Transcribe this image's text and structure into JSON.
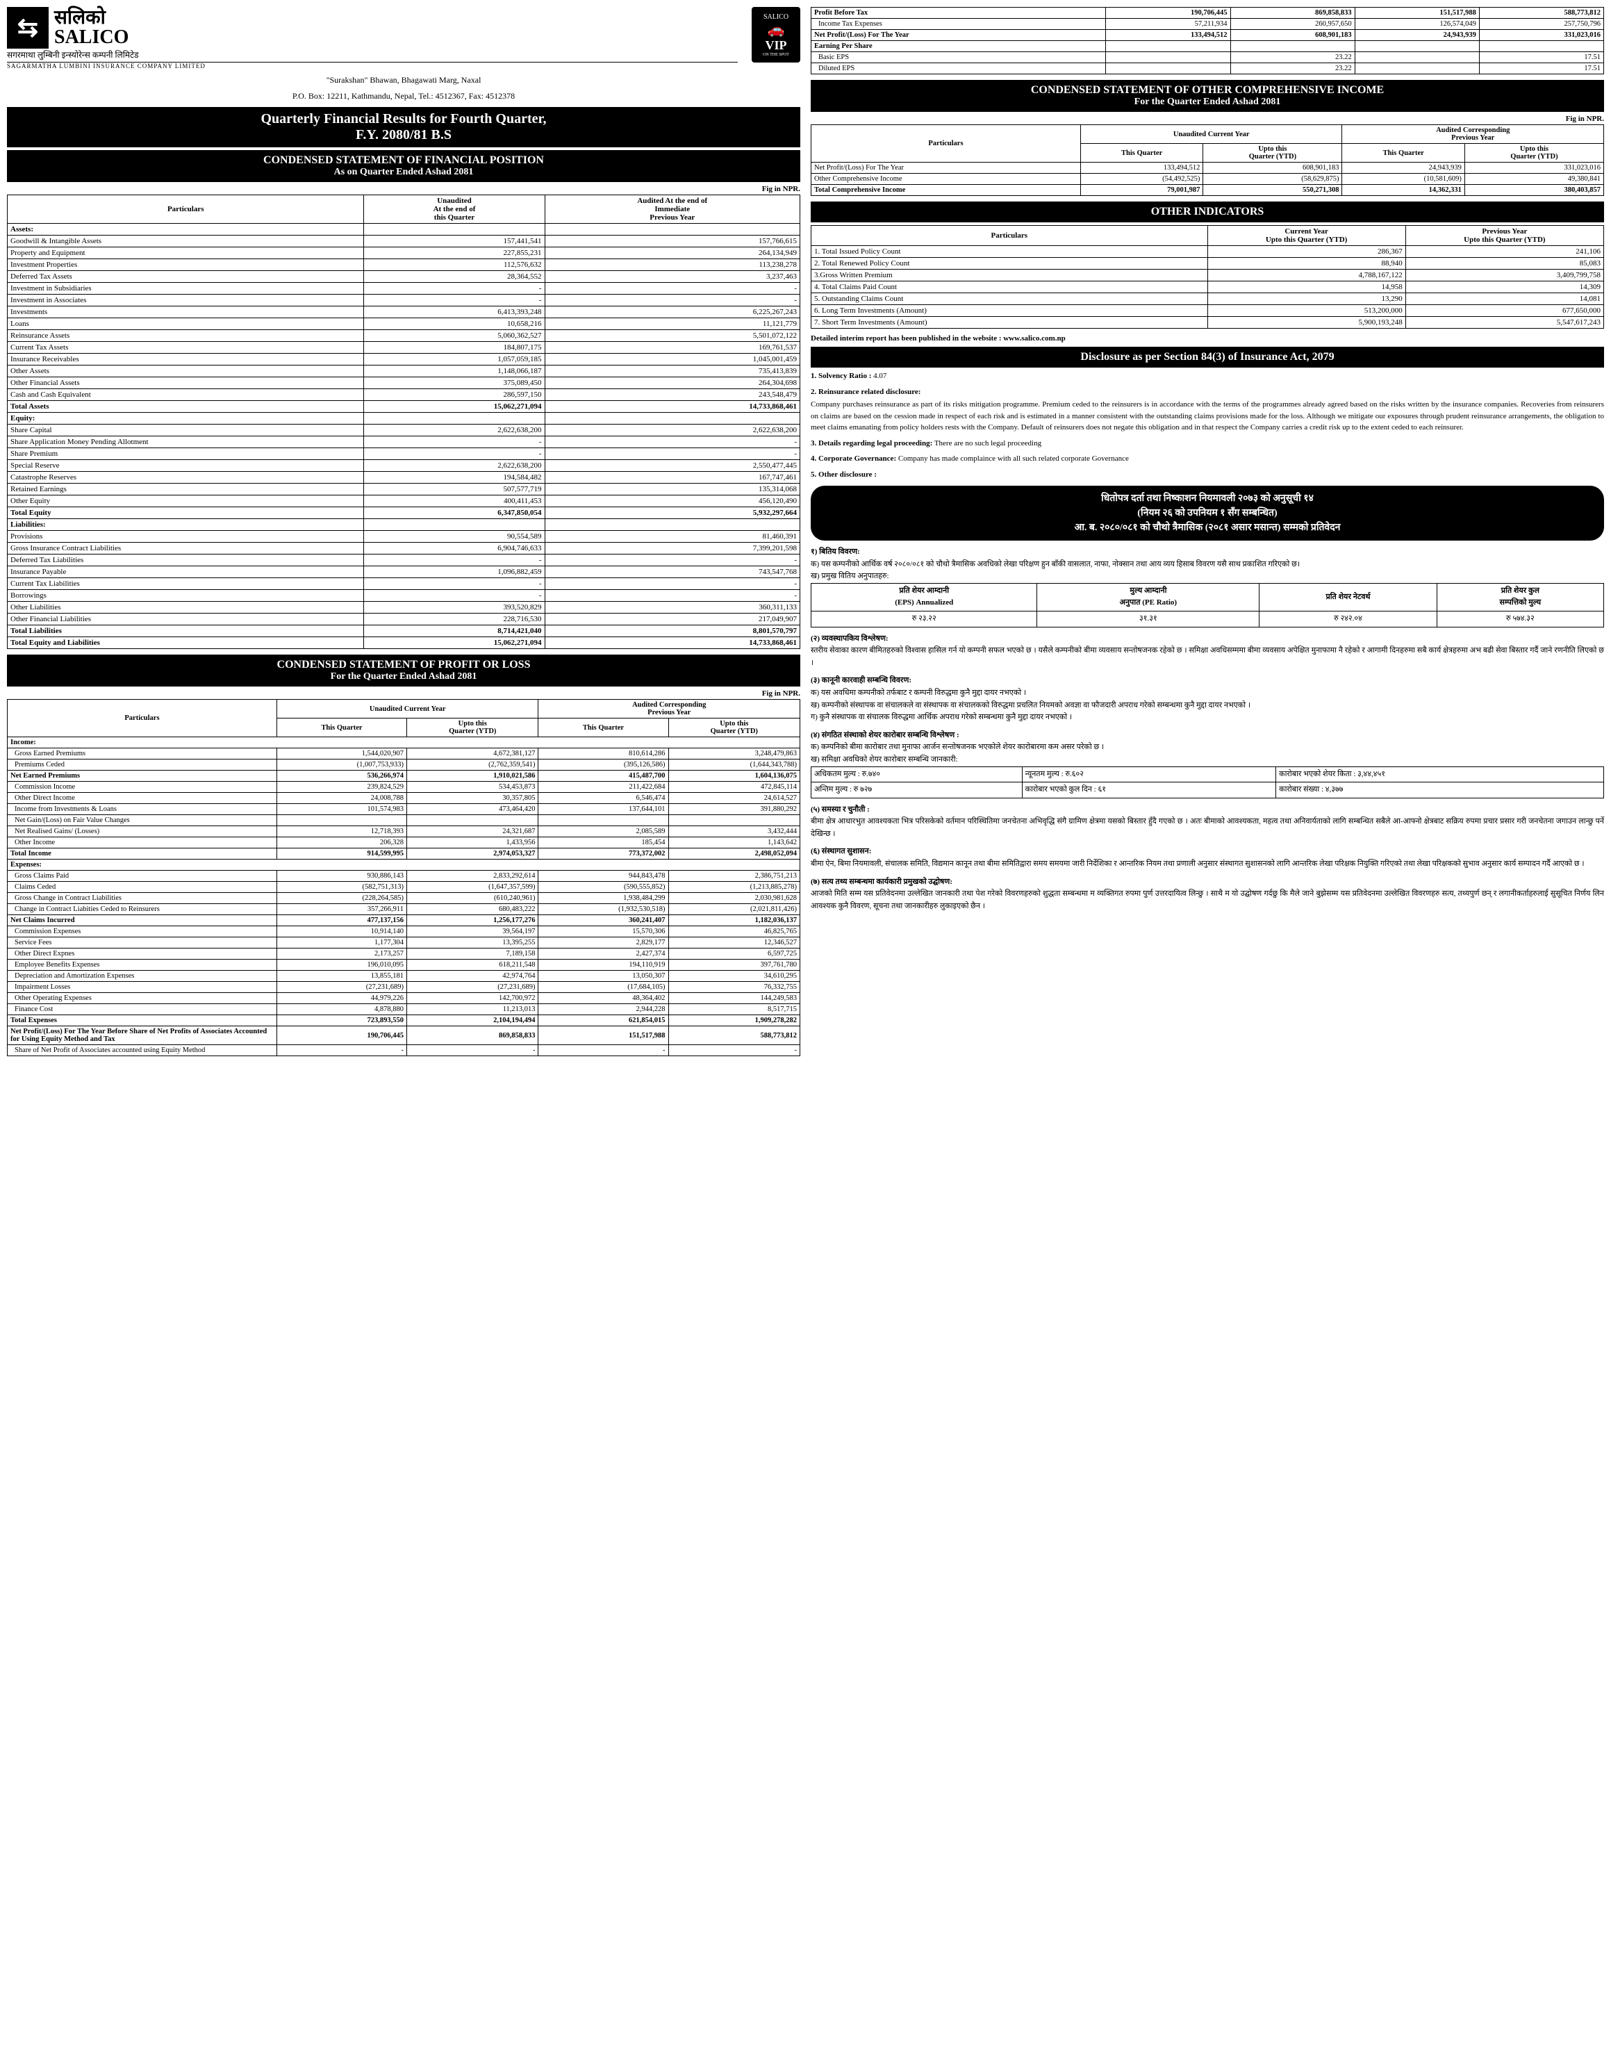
{
  "company": {
    "name_np": "सलिको",
    "name_en": "SALICO",
    "sub_np": "सगरमाथा लुम्बिनी इन्स्योरेन्स कम्पनी लिमिटेड",
    "sub_en": "SAGARMATHA LUMBINI INSURANCE COMPANY LIMITED",
    "address1": "\"Surakshan\" Bhawan, Bhagawati Marg, Naxal",
    "address2": "P.O. Box: 12211, Kathmandu, Nepal, Tel.: 4512367, Fax: 4512378",
    "vip_top": "SALICO",
    "vip": "VIP",
    "vip_sub": "ON THE SPOT"
  },
  "main_title": {
    "line1": "Quarterly Financial Results for Fourth Quarter,",
    "line2": "F.Y. 2080/81 B.S"
  },
  "fp": {
    "title": "CONDENSED STATEMENT OF FINANCIAL POSITION",
    "sub": "As on Quarter Ended Ashad 2081",
    "fig": "Fig in NPR.",
    "h_part": "Particulars",
    "h_cur": "Unaudited\nAt the end of\nthis Quarter",
    "h_prev": "Audited At the end of\nImmediate\nPrevious Year",
    "sections": [
      {
        "hdr": "Assets:",
        "rows": [
          [
            "Goodwill & Intangible Assets",
            "157,441,541",
            "157,766,615"
          ],
          [
            "Property and Equipment",
            "227,855,231",
            "264,134,949"
          ],
          [
            "Investment Properties",
            "112,576,632",
            "113,238,278"
          ],
          [
            "Deferred Tax Assets",
            "28,364,552",
            "3,237,463"
          ],
          [
            "Investment in Subsidiaries",
            "-",
            "-"
          ],
          [
            "Investment in Associates",
            "-",
            "-"
          ],
          [
            "Investments",
            "6,413,393,248",
            "6,225,267,243"
          ],
          [
            "Loans",
            "10,658,216",
            "11,121,779"
          ],
          [
            "Reinsurance Assets",
            "5,060,362,527",
            "5,501,072,122"
          ],
          [
            "Current Tax Assets",
            "184,807,175",
            "169,761,537"
          ],
          [
            "Insurance Receivables",
            "1,057,059,185",
            "1,045,001,459"
          ],
          [
            "Other Assets",
            "1,148,066,187",
            "735,413,839"
          ],
          [
            "Other Financial Assets",
            "375,089,450",
            "264,304,698"
          ],
          [
            "Cash and Cash Equivalent",
            "286,597,150",
            "243,548,479"
          ]
        ],
        "total": [
          "Total Assets",
          "15,062,271,094",
          "14,733,868,461"
        ]
      },
      {
        "hdr": "Equity:",
        "rows": [
          [
            "Share Capital",
            "2,622,638,200",
            "2,622,638,200"
          ],
          [
            "Share Application Money Pending Allotment",
            "-",
            "-"
          ],
          [
            "Share Premium",
            "-",
            "-"
          ],
          [
            "Special Reserve",
            "2,622,638,200",
            "2,550,477,445"
          ],
          [
            "Catastrophe Reserves",
            "194,584,482",
            "167,747,461"
          ],
          [
            "Retained Earnings",
            "507,577,719",
            "135,314,068"
          ],
          [
            "Other Equity",
            "400,411,453",
            "456,120,490"
          ]
        ],
        "total": [
          "Total Equity",
          "6,347,850,054",
          "5,932,297,664"
        ]
      },
      {
        "hdr": "Liabilities:",
        "rows": [
          [
            "Provisions",
            "90,554,589",
            "81,460,391"
          ],
          [
            "Gross Insurance Contract Liabilities",
            "6,904,746,633",
            "7,399,201,598"
          ],
          [
            "Deferred Tax Liabilities",
            "-",
            "-"
          ],
          [
            "Insurance Payable",
            "1,096,882,459",
            "743,547,768"
          ],
          [
            "Current Tax Liabilities",
            "-",
            "-"
          ],
          [
            "Borrowings",
            "-",
            "-"
          ],
          [
            "Other Liabilities",
            "393,520,829",
            "360,311,133"
          ],
          [
            "Other Financial Liabilities",
            "228,716,530",
            "217,049,907"
          ]
        ],
        "total": [
          "Total Liabilities",
          "8,714,421,040",
          "8,801,570,797"
        ]
      }
    ],
    "grand": [
      "Total Equity and Liabilities",
      "15,062,271,094",
      "14,733,868,461"
    ]
  },
  "pl": {
    "title": "CONDENSED STATEMENT OF PROFIT OR LOSS",
    "sub": "For the Quarter Ended Ashad 2081",
    "fig": "Fig in NPR.",
    "h_part": "Particulars",
    "h_cur": "Unaudited Current Year",
    "h_prev": "Audited Corresponding\nPrevious Year",
    "h_tq": "This Quarter",
    "h_ytd": "Upto this\nQuarter (YTD)",
    "rows": [
      {
        "t": "hdr",
        "c": [
          "Income:"
        ]
      },
      {
        "t": "r",
        "c": [
          "Gross Earned Premiums",
          "1,544,020,907",
          "4,672,381,127",
          "810,614,286",
          "3,248,479,863"
        ]
      },
      {
        "t": "r",
        "c": [
          "Premiums Ceded",
          "(1,007,753,933)",
          "(2,762,359,541)",
          "(395,126,586)",
          "(1,644,343,788)"
        ]
      },
      {
        "t": "b",
        "c": [
          "Net Earned Premiums",
          "536,266,974",
          "1,910,021,586",
          "415,487,700",
          "1,604,136,075"
        ]
      },
      {
        "t": "r",
        "c": [
          "Commission Income",
          "239,824,529",
          "534,453,873",
          "211,422,684",
          "472,845,114"
        ]
      },
      {
        "t": "r",
        "c": [
          "Other Direct Income",
          "24,008,788",
          "30,357,805",
          "6,546,474",
          "24,614,527"
        ]
      },
      {
        "t": "r",
        "c": [
          "Income from Investments & Loans",
          "101,574,983",
          "473,464,420",
          "137,644,101",
          "391,880,292"
        ]
      },
      {
        "t": "r",
        "c": [
          "Net Gain/(Loss) on Fair Value Changes",
          "",
          "",
          "",
          ""
        ]
      },
      {
        "t": "r",
        "c": [
          "Net Realised Gains/ (Losses)",
          "12,718,393",
          "24,321,687",
          "2,085,589",
          "3,432,444"
        ]
      },
      {
        "t": "r",
        "c": [
          "Other Income",
          "206,328",
          "1,433,956",
          "185,454",
          "1,143,642"
        ]
      },
      {
        "t": "b",
        "c": [
          "Total Income",
          "914,599,995",
          "2,974,053,327",
          "773,372,002",
          "2,498,052,094"
        ]
      },
      {
        "t": "hdr",
        "c": [
          "Expenses:"
        ]
      },
      {
        "t": "r",
        "c": [
          "Gross Claims Paid",
          "930,886,143",
          "2,833,292,614",
          "944,843,478",
          "2,386,751,213"
        ]
      },
      {
        "t": "r",
        "c": [
          "Claims Ceded",
          "(582,751,313)",
          "(1,647,357,599)",
          "(590,555,852)",
          "(1,213,885,278)"
        ]
      },
      {
        "t": "r",
        "c": [
          "Gross Change in Contract Liabilities",
          "(228,264,585)",
          "(610,240,961)",
          "1,938,484,299",
          "2,030,981,628"
        ]
      },
      {
        "t": "r",
        "c": [
          "Change in Contract Liabities Ceded to Reinsurers",
          "357,266,911",
          "680,483,222",
          "(1,932,530,518)",
          "(2,021,811,426)"
        ]
      },
      {
        "t": "b",
        "c": [
          "Net Claims Incurred",
          "477,137,156",
          "1,256,177,276",
          "360,241,407",
          "1,182,036,137"
        ]
      },
      {
        "t": "r",
        "c": [
          "Commission Expenses",
          "10,914,140",
          "39,564,197",
          "15,570,306",
          "46,825,765"
        ]
      },
      {
        "t": "r",
        "c": [
          "Service Fees",
          "1,177,304",
          "13,395,255",
          "2,829,177",
          "12,346,527"
        ]
      },
      {
        "t": "r",
        "c": [
          "Other Direct Expnes",
          "2,173,257",
          "7,189,158",
          "2,427,374",
          "6,597,725"
        ]
      },
      {
        "t": "r",
        "c": [
          "Employee Benefits Expenses",
          "196,010,095",
          "618,211,548",
          "194,110,919",
          "397,761,780"
        ]
      },
      {
        "t": "r",
        "c": [
          "Depreciation and Amortization Expenses",
          "13,855,181",
          "42,974,764",
          "13,050,307",
          "34,610,295"
        ]
      },
      {
        "t": "r",
        "c": [
          "Impairment Losses",
          "(27,231,689)",
          "(27,231,689)",
          "(17,684,105)",
          "76,332,755"
        ]
      },
      {
        "t": "r",
        "c": [
          "Other Operating Expenses",
          "44,979,226",
          "142,700,972",
          "48,364,402",
          "144,249,583"
        ]
      },
      {
        "t": "r",
        "c": [
          "Finance Cost",
          "4,878,880",
          "11,213,013",
          "2,944,228",
          "8,517,715"
        ]
      },
      {
        "t": "b",
        "c": [
          "Total Expenses",
          "723,893,550",
          "2,104,194,494",
          "621,854,015",
          "1,909,278,282"
        ]
      },
      {
        "t": "b",
        "c": [
          "Net Profit/(Loss) For The Year Before Share of Net Profits of Associates Accounted for Using Equity Method and Tax",
          "190,706,445",
          "869,858,833",
          "151,517,988",
          "588,773,812"
        ]
      },
      {
        "t": "r",
        "c": [
          "Share of Net Profit of Associates accounted using Equity Method",
          "-",
          "-",
          "-",
          "-"
        ]
      }
    ]
  },
  "pl_top": {
    "rows": [
      {
        "t": "b",
        "c": [
          "Profit Before Tax",
          "190,706,445",
          "869,858,833",
          "151,517,988",
          "588,773,812"
        ]
      },
      {
        "t": "r",
        "c": [
          "Income Tax Expenses",
          "57,211,934",
          "260,957,650",
          "126,574,049",
          "257,750,796"
        ]
      },
      {
        "t": "b",
        "c": [
          "Net Profit/(Loss) For The Year",
          "133,494,512",
          "608,901,183",
          "24,943,939",
          "331,023,016"
        ]
      },
      {
        "t": "b",
        "c": [
          "Earning Per Share",
          "",
          "",
          "",
          ""
        ]
      },
      {
        "t": "r",
        "c": [
          "Basic EPS",
          "",
          "23.22",
          "",
          "17.51"
        ]
      },
      {
        "t": "r",
        "c": [
          "Diluted EPS",
          "",
          "23.22",
          "",
          "17.51"
        ]
      }
    ]
  },
  "oci": {
    "title": "CONDENSED STATEMENT OF OTHER COMPREHENSIVE INCOME",
    "sub": "For the Quarter Ended Ashad 2081",
    "fig": "Fig in NPR.",
    "h_part": "Particulars",
    "h_cur": "Unaudited Current Year",
    "h_prev": "Audited Corresponding\nPrevious Year",
    "h_tq": "This Quarter",
    "h_ytd": "Upto this\nQuarter (YTD)",
    "rows": [
      [
        "Net Profit/(Loss) For The Year",
        "133,494,512",
        "608,901,183",
        "24,943,939",
        "331,023,016"
      ],
      [
        "Other Comprehensive Income",
        "(54,492,525)",
        "(58,629,875)",
        "(10,581,609)",
        "49,380,841"
      ]
    ],
    "total": [
      "Total Comprehensive Income",
      "79,001,987",
      "550,271,308",
      "14,362,331",
      "380,403,857"
    ]
  },
  "ind": {
    "title": "OTHER INDICATORS",
    "h_part": "Particulars",
    "h_cur": "Current Year\nUpto this Quarter (YTD)",
    "h_prev": "Previous Year\nUpto this Quarter (YTD)",
    "rows": [
      [
        "1. Total Issued Policy Count",
        "286,367",
        "241,106"
      ],
      [
        "2. Total Renewed Policy Count",
        "88,940",
        "85,083"
      ],
      [
        "3.Gross Written Premium",
        "4,788,167,122",
        "3,409,799,758"
      ],
      [
        "4. Total Claims Paid Count",
        "14,958",
        "14,309"
      ],
      [
        "5. Outstanding Claims Count",
        "13,290",
        "14,081"
      ],
      [
        "6. Long Term Investments (Amount)",
        "513,200,000",
        "677,650,000"
      ],
      [
        "7. Short Term Investments (Amount)",
        "5,900,193,248",
        "5,547,617,243"
      ]
    ]
  },
  "website_note": "Detailed interim report has been published in the website : www.salico.com.np",
  "discl": {
    "title": "Disclosure as per Section 84(3) of Insurance Act, 2079",
    "items": [
      {
        "h": "1.",
        "t": "Solvency Ratio :",
        "v": "4.07"
      },
      {
        "h": "2.",
        "t": "Reinsurance related disclosure:",
        "body": "Company purchases reinsurance as part of its risks mitigation programme. Premium ceded to the reinsurers is in accordance with the terms of the programmes already agreed based on the risks written by the insurance companies. Recoveries from reinsurers on claims are based on the cession made in respect of each risk and is estimated in a manner consistent with the outstanding claims provisions made for the loss. Although we mitigate our exposures through prudent reinsurance arrangements, the obligation to meet claims emanating from policy holders rests with the Company. Default of reinsurers does not negate this obligation and in that respect the Company carries a credit risk up to the extent ceded to each reinsurer."
      },
      {
        "h": "3.",
        "t": "Details regarding legal proceeding:",
        "v": "There are no such legal proceeding"
      },
      {
        "h": "4.",
        "t": "Corporate Governance:",
        "v": "Company has made complaince with all such related corporate Governance"
      },
      {
        "h": "5.",
        "t": "Other disclosure :",
        "v": ""
      }
    ]
  },
  "np_title": {
    "l1": "धितोपत्र दर्ता तथा निष्काशन नियमावली २०७३ को अनुसूची १४",
    "l2": "(नियम २६ को उपनियम १ सँग सम्बन्धित)",
    "l3": "आ. ब. २०८०/०८१ को चौथो त्रैमासिक (२०८१ असार मसान्त) सम्मको प्रतिवेदन"
  },
  "np1": {
    "hd": "१) बितिय विवरण:",
    "ka": "क) यस कम्पनीको आर्थिक वर्ष २०८०/०८१ को चौथो त्रैमासिक अवधिको लेखा परिक्षण हुन बाँकी वासलात, नाफा, नोक्सान तथा आय व्यय हिसाब विवरण यसै साथ प्रकाशित गरिएको छ।",
    "kha": "ख) प्रमुख वितिय अनुपातहरु:",
    "tbl": {
      "h": [
        "प्रति शेयर आम्दानी\n(EPS) Annualized",
        "मुल्य आम्दानी\nअनुपात (PE Ratio)",
        "प्रति शेयर नेटवर्थ",
        "प्रति शेयर कुल\nसम्पत्तिको मुल्य"
      ],
      "r": [
        "रु २३.२२",
        "३१.३१",
        "रु २४२.०४",
        "रु ५७४.३२"
      ]
    }
  },
  "np2": {
    "hd": "(२) व्यवस्थापकिय विश्लेषण:",
    "body": "स्तरीय सेवाका कारण बीमितहरुको विश्वास हासिल गर्न यो कम्पनी सफल भएको छ । यसैले कम्पनीको बीमा व्यवसाय सन्तोषजनक रहेको छ । समिक्षा अवधिसम्ममा बीमा व्यवसाय अपेक्षित मुनाफामा नै रहेको र आगामी दिनहरुमा सबै कार्य क्षेत्रहरुमा अभ बढी सेवा बिस्तार गर्दै जाने रणनीति लिएको छ ।"
  },
  "np3": {
    "hd": "(३) कानूनी कारवाही सम्बन्धि विवरण:",
    "ka": "क) यस अवधिमा कम्पनीको तर्फबाट र कम्पनी विरुद्धमा कुनै मुद्दा दायर नभएको ।",
    "kha": "ख) कम्पनीको संस्थापक वा संचालकले वा संस्थापक वा संचालकको विरुद्धमा प्रचलित नियमको अवज्ञा वा फौजदारी अपराध गरेको सम्बन्धमा कुनै मुद्दा दायर नभएको ।",
    "ga": "ग) कुनै संस्थापक वा संचालक विरुद्धमा आर्थिक अपराध गरेको सम्बन्धमा कुनै मुद्दा दायर नभएको ।"
  },
  "np4": {
    "hd": "(४) संगठित संस्थाको शेयर कारोबार सम्बन्धि विश्लेषण :",
    "ka": "क) कम्पनिको बीमा कारोबार तथा मुनाफा आर्जन सन्तोषजनक भएकोले शेयर कारोबारमा कम असर परेको छ ।",
    "kha": "ख) समिक्षा अवधिको शेयर कारोबार सम्बन्धि जानकारी:",
    "tbl": {
      "r1": [
        "अधिकतम मुल्य : रु.७४०",
        "न्यूनतम मुल्य : रु.६०२",
        "कारोबार भएको शेयर किता :   ३,४४,४५१"
      ],
      "r2": [
        "अन्तिम मुल्य : रु ७२७",
        "कारोबार भएको कुल दिन : ६१",
        "कारोबार संख्या : ४,३७७"
      ]
    }
  },
  "np5": {
    "hd": "(५) समस्या र चुनौती :",
    "body": "बीमा क्षेत्र आधारभुत आवश्यकता भित्र परिसकेको वर्तमान परिस्थितिमा जनचेतना अभिवृद्धि संगै ग्रामिण क्षेत्रमा यसको बिस्तार हुँदै गएको छ । अतः बीमाको आवश्यकता, महत्व तथा अनिवार्यताको लागि सम्बन्धित सबैले आ-आफ्नो क्षेत्रबाट सक्रिय रुपमा प्रचार प्रसार गरी जनचेतना जगाउन लान्छु पर्ने देखिन्छ ।"
  },
  "np6": {
    "hd": "(६) संस्थागत सुशासन:",
    "body": "बीमा ऐन, बिमा नियमावली, संचालक समिति, विद्यमान कानून तथा बीमा समितिद्वारा समय समयमा जारी निर्देशिका र आन्तरिक नियम तथा प्रणाली अनुसार संस्थागत सुशासनको लागि आन्तरिक लेखा परिक्षक नियुक्ति गरिएको तथा लेखा परिक्षकको सुभाव अनुसार कार्य सम्पादन गर्दै आएको छ ।"
  },
  "np7": {
    "hd": "(७) सत्य तथ्य सम्बन्धमा कार्यकारी प्रमुखको उद्घोषण:",
    "body": "आजको मिति सम्म यस प्रतिवेदनमा उल्लेखित जानकारी तथा पेश गरेको विवरणहरुको शुद्धता सम्बन्धमा म व्यक्तिगत रुपमा पुर्ण उत्तरदायित्व लिन्छु । साथै म यो उद्घोषण गर्दछु कि मैले जाने बुझेसम्म यस प्रतिवेदनमा उल्लेखित विवरणहरु सत्य, तथ्यपुर्ण छन् र लगानीकर्ताहरुलाई सुसूचित निर्णय लिन आवश्यक कुनै विवरण, सूचना तथा जानकारीहरु लुकाइएको छैन ।"
  }
}
